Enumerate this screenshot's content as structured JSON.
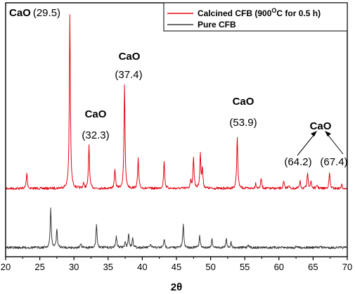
{
  "chart_data": {
    "type": "line",
    "title": "",
    "xlabel": "2θ",
    "ylabel": "",
    "xlim": [
      20,
      70
    ],
    "x_ticks": [
      "20",
      "25",
      "30",
      "35",
      "40",
      "45",
      "50",
      "55",
      "60",
      "65",
      "70"
    ],
    "legend": {
      "placement": "top-right"
    },
    "series": [
      {
        "name": "Calcined CFB (900",
        "name_superscript": "O",
        "name_suffix": "C for 0.5 h)",
        "color": "#e30613",
        "peaks": [
          {
            "x": 23.1,
            "y": 0.09
          },
          {
            "x": 29.4,
            "y": 1.0
          },
          {
            "x": 31.4,
            "y": 0.03
          },
          {
            "x": 32.2,
            "y": 0.25
          },
          {
            "x": 36.0,
            "y": 0.11
          },
          {
            "x": 37.4,
            "y": 0.59
          },
          {
            "x": 39.4,
            "y": 0.17
          },
          {
            "x": 43.2,
            "y": 0.16
          },
          {
            "x": 47.1,
            "y": 0.05
          },
          {
            "x": 47.5,
            "y": 0.18
          },
          {
            "x": 48.5,
            "y": 0.2
          },
          {
            "x": 48.8,
            "y": 0.11
          },
          {
            "x": 53.9,
            "y": 0.3
          },
          {
            "x": 56.6,
            "y": 0.03
          },
          {
            "x": 57.4,
            "y": 0.06
          },
          {
            "x": 60.7,
            "y": 0.04
          },
          {
            "x": 61.4,
            "y": 0.02
          },
          {
            "x": 63.1,
            "y": 0.04
          },
          {
            "x": 64.2,
            "y": 0.09
          },
          {
            "x": 64.7,
            "y": 0.04
          },
          {
            "x": 65.6,
            "y": 0.02
          },
          {
            "x": 67.4,
            "y": 0.09
          },
          {
            "x": 69.2,
            "y": 0.02
          }
        ]
      },
      {
        "name": "Pure CFB",
        "color": "#3a3a3a",
        "peaks": [
          {
            "x": 26.6,
            "y": 0.23
          },
          {
            "x": 27.5,
            "y": 0.11
          },
          {
            "x": 31.0,
            "y": 0.02
          },
          {
            "x": 33.3,
            "y": 0.14
          },
          {
            "x": 36.2,
            "y": 0.07
          },
          {
            "x": 37.5,
            "y": 0.03
          },
          {
            "x": 38.0,
            "y": 0.08
          },
          {
            "x": 38.6,
            "y": 0.06
          },
          {
            "x": 41.2,
            "y": 0.02
          },
          {
            "x": 43.2,
            "y": 0.05
          },
          {
            "x": 46.0,
            "y": 0.14
          },
          {
            "x": 48.4,
            "y": 0.07
          },
          {
            "x": 50.2,
            "y": 0.05
          },
          {
            "x": 52.3,
            "y": 0.05
          },
          {
            "x": 53.0,
            "y": 0.03
          },
          {
            "x": 55.5,
            "y": 0.02
          },
          {
            "x": 62.6,
            "y": 0.01
          },
          {
            "x": 66.0,
            "y": 0.01
          }
        ]
      }
    ],
    "annotations": [
      {
        "compound": "CaO",
        "value": "(29.5)",
        "x": 29.5,
        "inline": true
      },
      {
        "compound": "CaO",
        "value": "(32.3)",
        "x": 32.3
      },
      {
        "compound": "CaO",
        "value": "(37.4)",
        "x": 37.4
      },
      {
        "compound": "CaO",
        "value": "(53.9)",
        "x": 53.9
      },
      {
        "compound": "CaO",
        "value": "(64.2)",
        "x": 64.2
      },
      {
        "compound": "",
        "value": "(67.4)",
        "x": 67.4
      }
    ]
  }
}
